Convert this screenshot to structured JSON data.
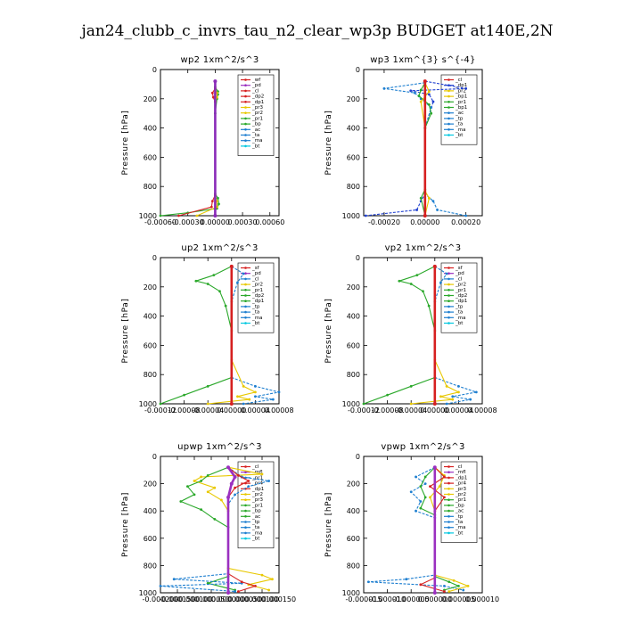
{
  "title": "jan24_clubb_c_invrs_tau_n2_clear_wp3p  BUDGET at140E,2N",
  "chart_data": [
    {
      "type": "line",
      "title": "wp2   1xm^2/s^3",
      "ylabel": "Pressure [hPa]",
      "ylim": [
        1000,
        0
      ],
      "xlim": [
        -0.0006,
        0.0007
      ],
      "xticks": [
        -0.0006,
        -0.0003,
        0.0,
        0.0003,
        0.0006
      ],
      "xtick_labels": [
        "-0.00060",
        "-0.00030",
        "0.00000",
        "0.00030",
        "0.00060"
      ],
      "yticks": [
        0,
        200,
        400,
        600,
        800,
        1000
      ],
      "legend": [
        "_wf",
        "_pd",
        "_cl",
        "_dp2",
        "_dp1",
        "_pr3",
        "_pr2",
        "_pr1",
        "_bp",
        "_ac",
        "_ta",
        "_ma",
        "_bt"
      ],
      "legend_colors": [
        "#d62020",
        "#9b30c0",
        "#d62020",
        "#d62020",
        "#d62020",
        "#e8c800",
        "#e8c800",
        "#2aa82a",
        "#2aa82a",
        "#1e7fd0",
        "#1e7fd0",
        "#1e7fd0",
        "#00c8e0"
      ],
      "series": [
        {
          "name": "_pr1",
          "color": "#2aa82a",
          "x": [
            0,
            0,
            3e-05,
            3e-05,
            2e-05,
            0,
            0,
            3e-05,
            4e-05,
            2e-05,
            -0.0003,
            -0.0006
          ],
          "y": [
            80,
            120,
            150,
            170,
            200,
            300,
            850,
            880,
            920,
            950,
            980,
            1000
          ]
        },
        {
          "name": "_pr2",
          "color": "#e8c800",
          "x": [
            0,
            0,
            2e-05,
            2e-05,
            0,
            0,
            2e-05,
            2e-05,
            -0.0002
          ],
          "y": [
            80,
            130,
            160,
            190,
            220,
            860,
            900,
            940,
            1000
          ]
        },
        {
          "name": "_dp1",
          "color": "#d62020",
          "x": [
            0,
            0,
            -3e-05,
            -2e-05,
            0,
            0,
            -3e-05,
            -4e-05,
            -0.0004
          ],
          "y": [
            80,
            130,
            160,
            190,
            220,
            860,
            900,
            940,
            1000
          ]
        },
        {
          "name": "_bt",
          "color": "#8a2bb8",
          "x": [
            0,
            0
          ],
          "y": [
            80,
            1000
          ]
        }
      ]
    },
    {
      "type": "line",
      "title": "wp3   1xm^{3} s^{-4}",
      "ylabel": "Pressure [hPa]",
      "ylim": [
        1000,
        0
      ],
      "xlim": [
        -0.0003,
        0.00028
      ],
      "xticks": [
        -0.0002,
        0.0,
        0.0002
      ],
      "xtick_labels": [
        "-0.00020",
        "0.00000",
        "0.00020"
      ],
      "yticks": [
        0,
        200,
        400,
        600,
        800,
        1000
      ],
      "legend": [
        "_cl",
        "_dp1",
        "_pr2",
        "_bp1",
        "_pr1",
        "_bp1",
        "_ac",
        "_tp",
        "_ta",
        "_ma",
        "_bt"
      ],
      "legend_colors": [
        "#d62020",
        "#2040d0",
        "#e8c800",
        "#e8c800",
        "#2aa82a",
        "#2aa82a",
        "#1e7fd0",
        "#1e7fd0",
        "#1e7fd0",
        "#1e7fd0",
        "#00c8e0"
      ],
      "series": [
        {
          "name": "_dp1",
          "color": "#2040d0",
          "x": [
            0,
            0.0002,
            -7e-05,
            2e-05,
            4e-05,
            0,
            0,
            -2e-05,
            -4e-05,
            -0.00029
          ],
          "y": [
            80,
            130,
            145,
            170,
            220,
            400,
            850,
            900,
            960,
            1000
          ]
        },
        {
          "name": "_tp",
          "color": "#1e7fd0",
          "x": [
            0,
            -0.0002,
            -5e-05,
            -2e-05,
            3e-05,
            0,
            0,
            4e-05,
            6e-05,
            0.0002
          ],
          "y": [
            90,
            130,
            160,
            200,
            260,
            400,
            850,
            900,
            960,
            1000
          ]
        },
        {
          "name": "_pr1",
          "color": "#2aa82a",
          "x": [
            0,
            -2e-05,
            -3e-05,
            2e-05,
            3e-05,
            0,
            0,
            -2e-05,
            0
          ],
          "y": [
            90,
            140,
            180,
            240,
            300,
            400,
            820,
            880,
            1000
          ]
        },
        {
          "name": "_pr2",
          "color": "#e8c800",
          "x": [
            0,
            2e-05,
            -2e-05,
            0,
            0,
            2e-05,
            0
          ],
          "y": [
            90,
            150,
            220,
            400,
            830,
            880,
            1000
          ]
        },
        {
          "name": "_bt",
          "color": "#d62020",
          "x": [
            0,
            0
          ],
          "y": [
            80,
            1000
          ]
        }
      ]
    },
    {
      "type": "line",
      "title": "up2   1xm^2/s^3",
      "ylabel": "Pressure [hPa]",
      "ylim": [
        1000,
        0
      ],
      "xlim": [
        -0.00012,
        8e-05
      ],
      "xticks": [
        -0.00012,
        -8e-05,
        -4e-05,
        0.0,
        4e-05,
        8e-05
      ],
      "xtick_labels": [
        "-0.00012",
        "-0.00008",
        "-0.00004",
        "0.00000",
        "0.00004",
        "0.00008"
      ],
      "yticks": [
        0,
        200,
        400,
        600,
        800,
        1000
      ],
      "legend": [
        "_sf",
        "_pd",
        "_cl",
        "_pr2",
        "_pr1",
        "_dp2",
        "_dp1",
        "_tp",
        "_ta",
        "_ma",
        "_bt"
      ],
      "legend_colors": [
        "#d62020",
        "#9b30c0",
        "#1e7fd0",
        "#e8c800",
        "#2aa82a",
        "#2aa82a",
        "#2aa82a",
        "#1e7fd0",
        "#1e7fd0",
        "#1e7fd0",
        "#00c8e0"
      ],
      "series": [
        {
          "name": "_dp2",
          "color": "#2aa82a",
          "x": [
            0,
            -3e-05,
            -6e-05,
            -4e-05,
            -2e-05,
            -1e-05,
            0,
            0,
            -4e-05,
            -8e-05,
            -0.00012
          ],
          "y": [
            60,
            120,
            160,
            180,
            230,
            330,
            500,
            820,
            880,
            940,
            1000
          ]
        },
        {
          "name": "_tp",
          "color": "#1e7fd0",
          "x": [
            0,
            2e-05,
            1e-05,
            0,
            0,
            4e-05,
            8e-05,
            4e-05,
            7e-05,
            2e-05
          ],
          "y": [
            60,
            110,
            170,
            300,
            820,
            880,
            920,
            950,
            970,
            1000
          ]
        },
        {
          "name": "_pr1",
          "color": "#e8c800",
          "x": [
            0,
            0,
            2e-05,
            4e-05,
            1e-05,
            3e-05,
            -4e-05
          ],
          "y": [
            60,
            700,
            880,
            920,
            950,
            970,
            1000
          ]
        },
        {
          "name": "_bt",
          "color": "#d62020",
          "x": [
            0,
            0
          ],
          "y": [
            60,
            1000
          ]
        }
      ]
    },
    {
      "type": "line",
      "title": "vp2   1xm^2/s^3",
      "ylabel": "Pressure [hPa]",
      "ylim": [
        1000,
        0
      ],
      "xlim": [
        -0.00012,
        8e-05
      ],
      "xticks": [
        -0.00012,
        -8e-05,
        -4e-05,
        0.0,
        4e-05,
        8e-05
      ],
      "xtick_labels": [
        "-0.00012",
        "-0.00008",
        "-0.00004",
        "0.00000",
        "0.00004",
        "0.00008"
      ],
      "yticks": [
        0,
        200,
        400,
        600,
        800,
        1000
      ],
      "legend": [
        "_sf",
        "_pd",
        "_cl",
        "_pr2",
        "_pr1",
        "_dp2",
        "_dp1",
        "_tp",
        "_ta",
        "_ma",
        "_bt"
      ],
      "legend_colors": [
        "#d62020",
        "#9b30c0",
        "#1e7fd0",
        "#e8c800",
        "#2aa82a",
        "#2aa82a",
        "#2aa82a",
        "#1e7fd0",
        "#1e7fd0",
        "#1e7fd0",
        "#00c8e0"
      ],
      "series": [
        {
          "name": "_dp2",
          "color": "#2aa82a",
          "x": [
            0,
            -3e-05,
            -6e-05,
            -4e-05,
            -2e-05,
            -1e-05,
            0,
            0,
            -4e-05,
            -8e-05,
            -0.00012
          ],
          "y": [
            60,
            120,
            160,
            180,
            230,
            330,
            500,
            820,
            880,
            940,
            1000
          ]
        },
        {
          "name": "_tp",
          "color": "#1e7fd0",
          "x": [
            0,
            2e-05,
            1e-05,
            0,
            0,
            4e-05,
            7e-05,
            3e-05,
            6e-05,
            2e-05
          ],
          "y": [
            60,
            110,
            170,
            300,
            820,
            880,
            920,
            950,
            970,
            1000
          ]
        },
        {
          "name": "_pr1",
          "color": "#e8c800",
          "x": [
            0,
            0,
            2e-05,
            4e-05,
            1e-05,
            3e-05,
            -4e-05
          ],
          "y": [
            60,
            700,
            880,
            920,
            950,
            970,
            1000
          ]
        },
        {
          "name": "_bt",
          "color": "#d62020",
          "x": [
            0,
            0
          ],
          "y": [
            60,
            1000
          ]
        }
      ]
    },
    {
      "type": "line",
      "title": "upwp   1xm^2/s^3",
      "ylabel": "Pressure [hPa]",
      "ylim": [
        1000,
        0
      ],
      "xlim": [
        -0.0002,
        0.00015
      ],
      "xticks": [
        -0.0002,
        -0.00015,
        -0.0001,
        -5e-05,
        0.0,
        5e-05,
        0.0001,
        0.00015
      ],
      "xtick_labels": [
        "-0.000200",
        "-0.000150",
        "-0.000100",
        "-0.000050",
        "0.000000",
        "0.000050",
        "0.000100",
        "0.000150"
      ],
      "yticks": [
        0,
        200,
        400,
        600,
        800,
        1000
      ],
      "legend": [
        "_cl",
        "_mfl",
        "_pr1",
        "_pr4",
        "_dp1",
        "_pr2",
        "_pr3",
        "_pr1",
        "_bp",
        "_ac",
        "_tp",
        "_ta",
        "_ma",
        "_bt"
      ],
      "legend_colors": [
        "#d62020",
        "#9b30c0",
        "#1e7fd0",
        "#d62020",
        "#d62020",
        "#e8c800",
        "#e8c800",
        "#2aa82a",
        "#2aa82a",
        "#2aa82a",
        "#1e7fd0",
        "#1e7fd0",
        "#1e7fd0",
        "#00c8e0"
      ],
      "series": [
        {
          "name": "_pr2",
          "color": "#e8c800",
          "x": [
            0,
            0.0001,
            -8e-05,
            -0.0001,
            -4e-05,
            -6e-05,
            -2e-05,
            0,
            0,
            0.0001,
            0.00013,
            6e-05,
            0.00012
          ],
          "y": [
            80,
            130,
            150,
            180,
            230,
            260,
            320,
            400,
            820,
            870,
            900,
            940,
            980
          ]
        },
        {
          "name": "_pr1",
          "color": "#2aa82a",
          "x": [
            0,
            -6e-05,
            -8e-05,
            -0.00012,
            -0.0001,
            -0.00014,
            -8e-05,
            -4e-05,
            0,
            0,
            -6e-05,
            2e-05
          ],
          "y": [
            80,
            140,
            180,
            220,
            280,
            330,
            390,
            460,
            520,
            880,
            930,
            980
          ]
        },
        {
          "name": "_tp",
          "color": "#1e7fd0",
          "x": [
            0,
            4e-05,
            0.00012,
            6e-05,
            2e-05,
            0,
            0,
            -0.00016,
            4e-05,
            -0.0002,
            2e-05
          ],
          "y": [
            80,
            150,
            180,
            220,
            280,
            350,
            860,
            900,
            930,
            950,
            990
          ]
        },
        {
          "name": "_pr4",
          "color": "#d62020",
          "x": [
            0,
            3e-05,
            6e-05,
            2e-05,
            0,
            0,
            4e-05,
            8e-05,
            3e-05
          ],
          "y": [
            80,
            140,
            180,
            230,
            300,
            860,
            920,
            950,
            990
          ]
        },
        {
          "name": "_bt",
          "color": "#9b30c0",
          "x": [
            0,
            2e-05,
            1e-05,
            0,
            0
          ],
          "y": [
            80,
            150,
            200,
            300,
            1000
          ]
        }
      ]
    },
    {
      "type": "line",
      "title": "vpwp   1xm^2/s^3",
      "ylabel": "Pressure [hPa]",
      "ylim": [
        1000,
        0
      ],
      "xlim": [
        -1.5e-05,
        1e-05
      ],
      "xticks": [
        -1.5e-05,
        -1e-05,
        -5e-06,
        0.0,
        5e-06,
        1e-05
      ],
      "xtick_labels": [
        "-0.000015",
        "-0.000010",
        "-0.000005",
        "0.000000",
        "0.000005",
        "0.000010"
      ],
      "yticks": [
        0,
        200,
        400,
        600,
        800,
        1000
      ],
      "legend": [
        "_cl",
        "_mfl",
        "_dp1",
        "_pr4",
        "_pr3",
        "_pr2",
        "_pr1",
        "_bp",
        "_ac",
        "_tp",
        "_ta",
        "_ma",
        "_bt"
      ],
      "legend_colors": [
        "#d62020",
        "#9b30c0",
        "#d62020",
        "#d62020",
        "#e8c800",
        "#e8c800",
        "#2aa82a",
        "#2aa82a",
        "#2aa82a",
        "#1e7fd0",
        "#1e7fd0",
        "#1e7fd0",
        "#00c8e0"
      ],
      "series": [
        {
          "name": "_tp",
          "color": "#1e7fd0",
          "x": [
            0,
            -4e-06,
            -2e-06,
            -5e-06,
            -3e-06,
            -4e-06,
            0,
            0,
            -6e-06,
            -1.4e-05,
            2e-06,
            6e-06
          ],
          "y": [
            80,
            150,
            200,
            260,
            330,
            400,
            450,
            870,
            900,
            920,
            950,
            980
          ]
        },
        {
          "name": "_pr1",
          "color": "#2aa82a",
          "x": [
            0,
            -2e-06,
            -3e-06,
            -2e-06,
            -3e-06,
            0,
            0,
            3e-06,
            5e-06,
            2e-06
          ],
          "y": [
            80,
            150,
            220,
            300,
            380,
            430,
            880,
            920,
            950,
            980
          ]
        },
        {
          "name": "_pr2",
          "color": "#e8c800",
          "x": [
            0,
            2e-06,
            1e-06,
            -1e-06,
            0,
            0,
            4e-06,
            7e-06,
            3e-06
          ],
          "y": [
            80,
            140,
            220,
            300,
            400,
            870,
            910,
            950,
            990
          ]
        },
        {
          "name": "_pr4",
          "color": "#d62020",
          "x": [
            0,
            2e-06,
            -1e-06,
            2e-06,
            0,
            0,
            -3e-06,
            2e-06
          ],
          "y": [
            80,
            150,
            220,
            300,
            400,
            890,
            940,
            990
          ]
        },
        {
          "name": "_bt",
          "color": "#9b30c0",
          "x": [
            0,
            0
          ],
          "y": [
            80,
            1000
          ]
        }
      ]
    }
  ]
}
